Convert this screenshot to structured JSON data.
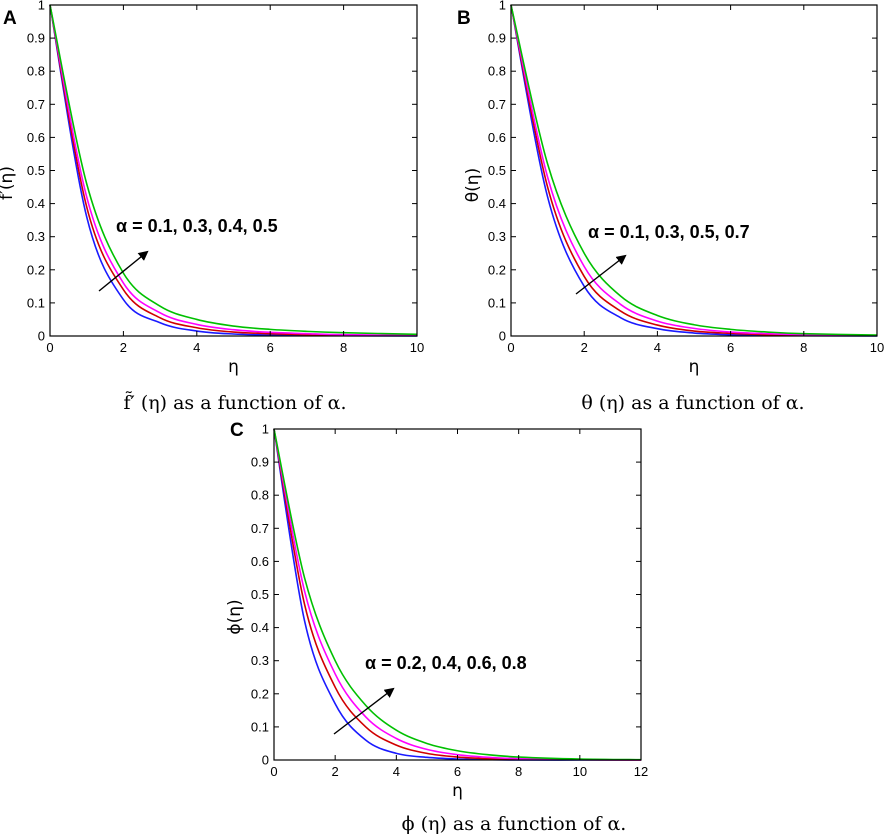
{
  "chart_data": [
    {
      "type": "line",
      "panel_label": "A",
      "ylabel": "f̃′(η)",
      "xlabel": "η",
      "caption": "f̃′ (η) as a function of α.",
      "annotation": "α = 0.1, 0.3, 0.4, 0.5",
      "xlim": [
        0,
        10
      ],
      "ylim": [
        0,
        1
      ],
      "x_ticks": [
        0,
        2,
        4,
        6,
        8,
        10
      ],
      "y_ticks": [
        0,
        0.1,
        0.2,
        0.3,
        0.4,
        0.5,
        0.6,
        0.7,
        0.8,
        0.9,
        1
      ],
      "x": [
        0,
        1,
        2,
        3,
        4,
        5,
        6,
        7,
        8,
        10
      ],
      "series": [
        {
          "color": "#1a1aff",
          "values": [
            1,
            0.36,
            0.11,
            0.04,
            0.015,
            0.006,
            0.003,
            0.002,
            0.001,
            0
          ]
        },
        {
          "color": "#d00000",
          "values": [
            1,
            0.39,
            0.14,
            0.055,
            0.025,
            0.012,
            0.007,
            0.004,
            0.002,
            0.001
          ]
        },
        {
          "color": "#ff00ff",
          "values": [
            1,
            0.42,
            0.16,
            0.07,
            0.035,
            0.019,
            0.011,
            0.007,
            0.004,
            0.002
          ]
        },
        {
          "color": "#00c000",
          "values": [
            1,
            0.46,
            0.19,
            0.09,
            0.05,
            0.03,
            0.02,
            0.014,
            0.01,
            0.005
          ]
        }
      ]
    },
    {
      "type": "line",
      "panel_label": "B",
      "ylabel": "θ(η)",
      "xlabel": "η",
      "caption": "θ (η) as a function of α.",
      "annotation": "α = 0.1, 0.3, 0.5, 0.7",
      "xlim": [
        0,
        10
      ],
      "ylim": [
        0,
        1
      ],
      "x_ticks": [
        0,
        2,
        4,
        6,
        8,
        10
      ],
      "y_ticks": [
        0,
        0.1,
        0.2,
        0.3,
        0.4,
        0.5,
        0.6,
        0.7,
        0.8,
        0.9,
        1
      ],
      "x": [
        0,
        1,
        2,
        3,
        4,
        5,
        6,
        7,
        8,
        10
      ],
      "series": [
        {
          "color": "#1a1aff",
          "values": [
            1,
            0.42,
            0.15,
            0.055,
            0.022,
            0.009,
            0.004,
            0.002,
            0.001,
            0
          ]
        },
        {
          "color": "#d00000",
          "values": [
            1,
            0.45,
            0.18,
            0.075,
            0.033,
            0.015,
            0.008,
            0.004,
            0.002,
            0.001
          ]
        },
        {
          "color": "#ff00ff",
          "values": [
            1,
            0.48,
            0.21,
            0.095,
            0.045,
            0.023,
            0.012,
            0.007,
            0.004,
            0.001
          ]
        },
        {
          "color": "#00c000",
          "values": [
            1,
            0.52,
            0.25,
            0.12,
            0.062,
            0.034,
            0.02,
            0.012,
            0.007,
            0.003
          ]
        }
      ]
    },
    {
      "type": "line",
      "panel_label": "C",
      "ylabel": "ϕ(η)",
      "xlabel": "η",
      "caption": "ϕ (η) as a function of α.",
      "annotation": "α = 0.2, 0.4, 0.6, 0.8",
      "xlim": [
        0,
        12
      ],
      "ylim": [
        0,
        1
      ],
      "x_ticks": [
        0,
        2,
        4,
        6,
        8,
        10,
        12
      ],
      "y_ticks": [
        0,
        0.1,
        0.2,
        0.3,
        0.4,
        0.5,
        0.6,
        0.7,
        0.8,
        0.9,
        1
      ],
      "x": [
        0,
        1,
        2,
        3,
        4,
        5,
        6,
        7,
        8,
        10,
        12
      ],
      "series": [
        {
          "color": "#1a1aff",
          "values": [
            1,
            0.42,
            0.17,
            0.06,
            0.02,
            0.008,
            0.003,
            0.001,
            0,
            0,
            0
          ]
        },
        {
          "color": "#d00000",
          "values": [
            1,
            0.47,
            0.22,
            0.1,
            0.045,
            0.02,
            0.009,
            0.004,
            0.002,
            0.001,
            0
          ]
        },
        {
          "color": "#ff00ff",
          "values": [
            1,
            0.51,
            0.26,
            0.13,
            0.065,
            0.032,
            0.016,
            0.008,
            0.004,
            0.001,
            0
          ]
        },
        {
          "color": "#00c000",
          "values": [
            1,
            0.55,
            0.3,
            0.165,
            0.09,
            0.05,
            0.028,
            0.016,
            0.009,
            0.003,
            0.001
          ]
        }
      ]
    }
  ]
}
